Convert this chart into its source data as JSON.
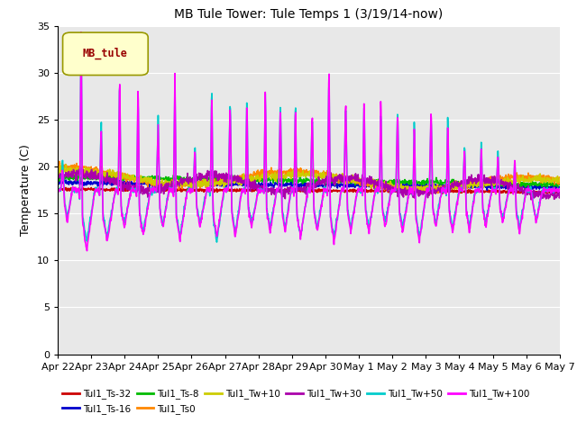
{
  "title": "MB Tule Tower: Tule Temps 1 (3/19/14-now)",
  "ylabel": "Temperature (C)",
  "ylim": [
    0,
    35
  ],
  "yticks": [
    0,
    5,
    10,
    15,
    20,
    25,
    30,
    35
  ],
  "x_tick_labels": [
    "Apr 22",
    "Apr 23",
    "Apr 24",
    "Apr 25",
    "Apr 26",
    "Apr 27",
    "Apr 28",
    "Apr 29",
    "Apr 30",
    "May 1",
    "May 2",
    "May 3",
    "May 4",
    "May 5",
    "May 6",
    "May 7"
  ],
  "series_order": [
    "Tul1_Ts-32",
    "Tul1_Ts-16",
    "Tul1_Ts-8",
    "Tul1_Ts0",
    "Tul1_Tw+10",
    "Tul1_Tw+30",
    "Tul1_Tw+50",
    "Tul1_Tw+100"
  ],
  "series": {
    "Tul1_Ts-32": {
      "color": "#cc0000",
      "linewidth": 1.2
    },
    "Tul1_Ts-16": {
      "color": "#0000cc",
      "linewidth": 1.2
    },
    "Tul1_Ts-8": {
      "color": "#00bb00",
      "linewidth": 1.2
    },
    "Tul1_Ts0": {
      "color": "#ff8800",
      "linewidth": 1.2
    },
    "Tul1_Tw+10": {
      "color": "#cccc00",
      "linewidth": 1.2
    },
    "Tul1_Tw+30": {
      "color": "#aa00aa",
      "linewidth": 1.2
    },
    "Tul1_Tw+50": {
      "color": "#00cccc",
      "linewidth": 1.2
    },
    "Tul1_Tw+100": {
      "color": "#ff00ff",
      "linewidth": 1.2
    }
  },
  "legend_box_color": "#ffffcc",
  "legend_box_edge": "#999900",
  "legend_box_text": "MB_tule",
  "bg_color": "#e8e8e8"
}
